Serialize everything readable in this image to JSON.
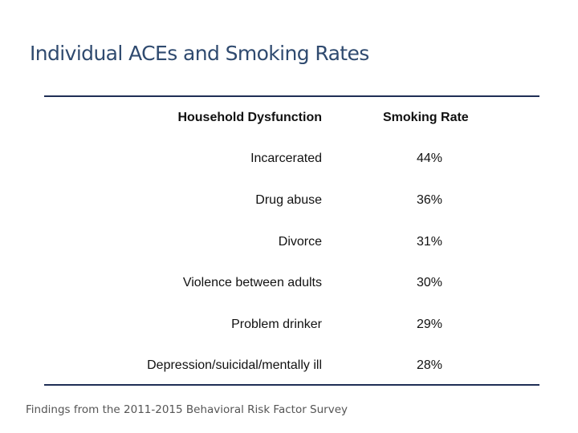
{
  "slide": {
    "title": "Individual ACEs and Smoking Rates",
    "footnote": "Findings from the 2011-2015 Behavioral Risk Factor Survey",
    "colors": {
      "title": "#2f4a6f",
      "rule": "#1f2e55",
      "text": "#111111",
      "footnote": "#555555"
    }
  },
  "table": {
    "headers": {
      "left": "Household Dysfunction",
      "right": "Smoking Rate"
    },
    "rows": [
      {
        "label": "Incarcerated",
        "rate": "44%"
      },
      {
        "label": "Drug abuse",
        "rate": "36%"
      },
      {
        "label": "Divorce",
        "rate": "31%"
      },
      {
        "label": "Violence between adults",
        "rate": "30%"
      },
      {
        "label": "Problem drinker",
        "rate": "29%"
      },
      {
        "label": "Depression/suicidal/mentally ill",
        "rate": "28%"
      }
    ]
  }
}
